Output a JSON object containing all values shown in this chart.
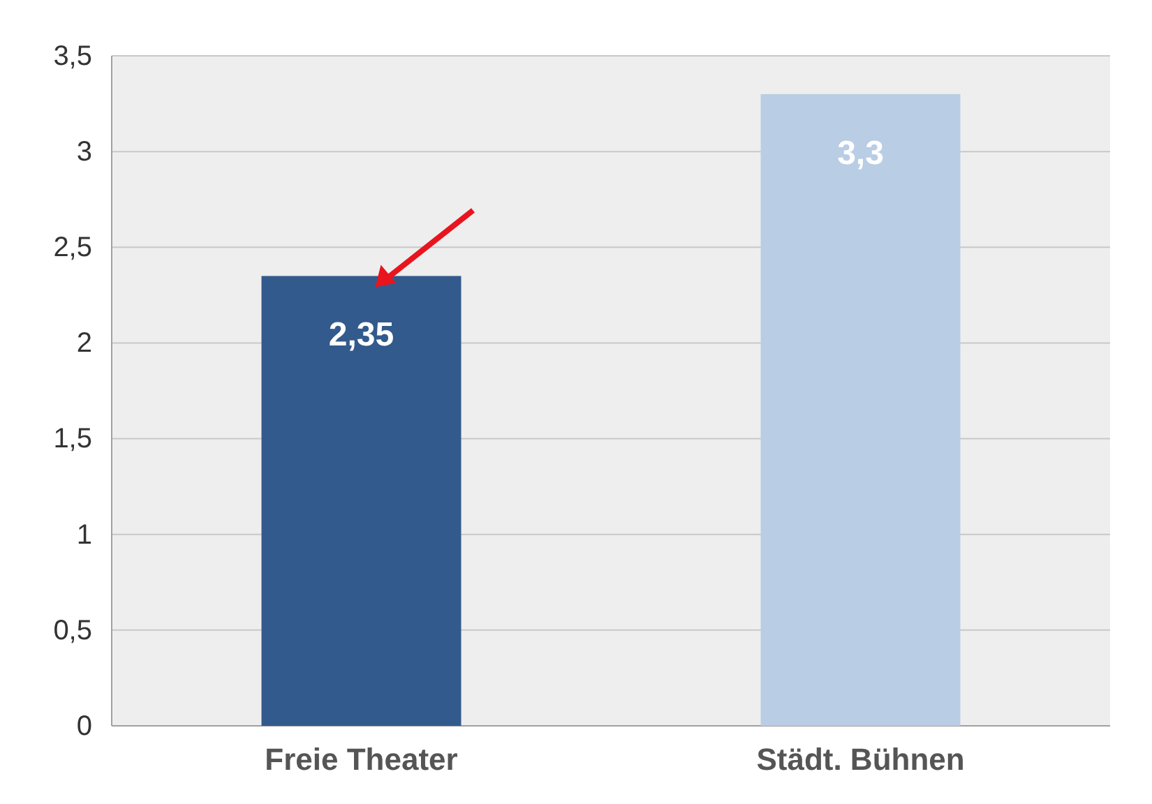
{
  "chart_data": {
    "type": "bar",
    "categories": [
      "Freie Theater",
      "Städt. Bühnen"
    ],
    "values": [
      2.35,
      3.3
    ],
    "colors": [
      "#335a8c",
      "#b9cde5"
    ],
    "value_labels": [
      "2,35",
      "3,3"
    ],
    "ylim": [
      0,
      3.5
    ],
    "yticks": [
      0,
      {
        "value": 0.5,
        "label": "0,5"
      },
      1,
      {
        "value": 1.5,
        "label": "1,5"
      },
      2,
      {
        "value": 2.5,
        "label": "2,5"
      },
      3,
      {
        "value": 3.5,
        "label": "3,5"
      }
    ],
    "grid": "y"
  }
}
